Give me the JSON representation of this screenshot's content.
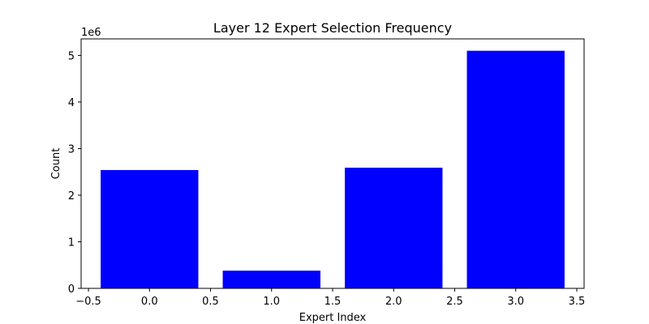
{
  "chart_data": {
    "type": "bar",
    "title": "Layer 12 Expert Selection Frequency",
    "xlabel": "Expert Index",
    "ylabel": "Count",
    "y_offset_label": "1e6",
    "x": [
      0,
      1,
      2,
      3
    ],
    "values": [
      2540000,
      380000,
      2590000,
      5100000
    ],
    "bar_color": "#0000ff",
    "xlim": [
      -0.56,
      3.56
    ],
    "ylim": [
      0,
      5355000
    ],
    "x_ticks": [
      -0.5,
      0.0,
      0.5,
      1.0,
      1.5,
      2.0,
      2.5,
      3.0,
      3.5
    ],
    "x_tick_labels": [
      "−0.5",
      "0.0",
      "0.5",
      "1.0",
      "1.5",
      "2.0",
      "2.5",
      "3.0",
      "3.5"
    ],
    "y_ticks": [
      0,
      1000000,
      2000000,
      3000000,
      4000000,
      5000000
    ],
    "y_tick_labels": [
      "0",
      "1",
      "2",
      "3",
      "4",
      "5"
    ],
    "grid": false,
    "legend": "none"
  }
}
